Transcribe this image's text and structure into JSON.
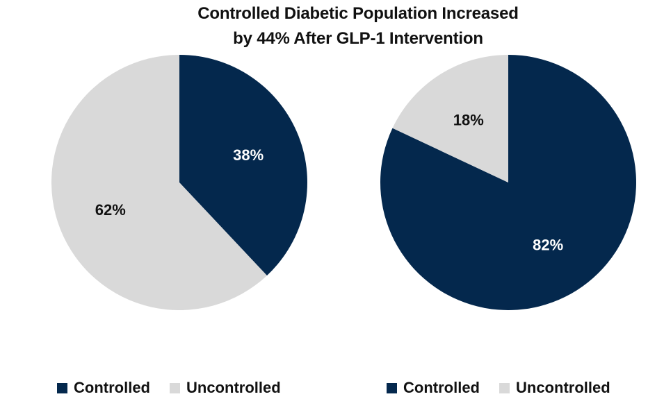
{
  "chart_data": {
    "type": "pie",
    "title": [
      "Controlled Diabetic Population Increased",
      "by 44% After GLP-1 Intervention"
    ],
    "colors": {
      "Controlled": "#04284d",
      "Uncontrolled": "#d9d9d9"
    },
    "label_colors": {
      "Controlled": "#ffffff",
      "Uncontrolled": "#111111"
    },
    "pies": [
      {
        "slices": [
          {
            "label": "Controlled",
            "value": 38,
            "text": "38%"
          },
          {
            "label": "Uncontrolled",
            "value": 62,
            "text": "62%"
          }
        ],
        "legend": [
          "Controlled",
          "Uncontrolled"
        ]
      },
      {
        "slices": [
          {
            "label": "Controlled",
            "value": 82,
            "text": "82%"
          },
          {
            "label": "Uncontrolled",
            "value": 18,
            "text": "18%"
          }
        ],
        "legend": [
          "Controlled",
          "Uncontrolled"
        ]
      }
    ]
  }
}
